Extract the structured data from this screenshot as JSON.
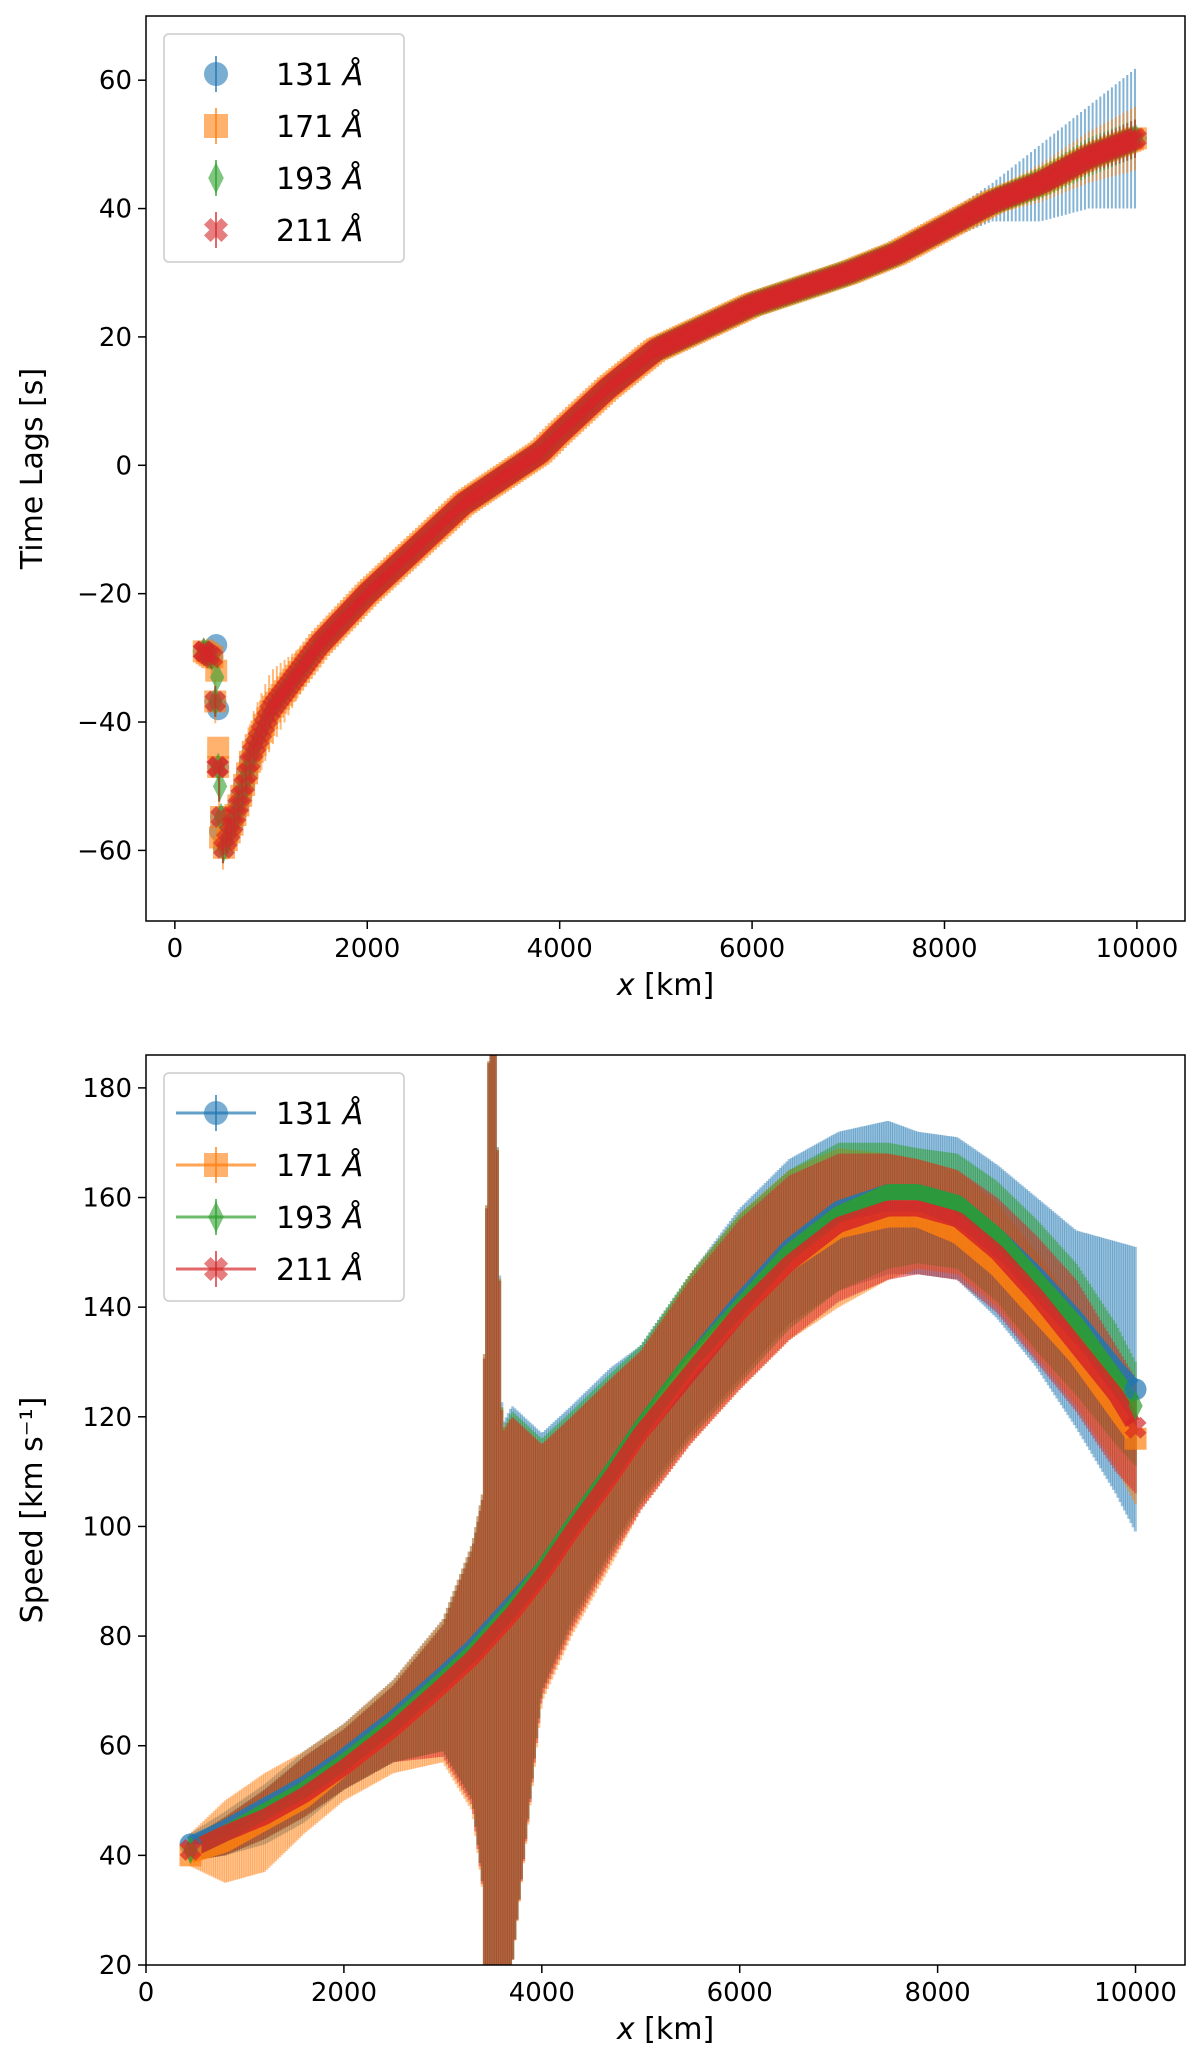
{
  "colors": {
    "c131": "#1f77b4",
    "c171": "#ff7f0e",
    "c193": "#2ca02c",
    "c211": "#d62728"
  },
  "chart_data": [
    {
      "type": "scatter",
      "title": "",
      "xlabel": "x [km]",
      "ylabel": "Time Lags [s]",
      "xlim": [
        -300,
        10500
      ],
      "ylim": [
        -71,
        70
      ],
      "xticks": [
        0,
        2000,
        4000,
        6000,
        8000,
        10000
      ],
      "yticks": [
        -60,
        -40,
        -20,
        0,
        20,
        40,
        60
      ],
      "xtick_labels": [
        "0",
        "2000",
        "4000",
        "6000",
        "8000",
        "10000"
      ],
      "ytick_labels": [
        "−60",
        "−40",
        "−20",
        "0",
        "20",
        "40",
        "60"
      ],
      "legend_position": "upper-left",
      "series": [
        {
          "name": "131 Å",
          "marker": "circle",
          "color": "#1f77b4"
        },
        {
          "name": "171 Å",
          "marker": "square",
          "color": "#ff7f0e"
        },
        {
          "name": "193 Å",
          "marker": "thin-diamond",
          "color": "#2ca02c"
        },
        {
          "name": "211 Å",
          "marker": "x",
          "color": "#d62728"
        }
      ],
      "x": [
        300,
        400,
        450,
        500,
        600,
        700,
        800,
        1000,
        1500,
        2000,
        2500,
        3000,
        3500,
        3800,
        4000,
        4500,
        5000,
        6000,
        7000,
        7500,
        8000,
        8500,
        9000,
        9500,
        10000
      ],
      "values": [
        -29,
        -30,
        -47,
        -60,
        -56,
        -51,
        -45,
        -38,
        -28,
        -20,
        -13,
        -6,
        -1,
        2,
        5,
        12,
        18,
        25,
        30,
        33,
        37,
        41,
        44,
        48,
        51
      ],
      "err_131": [
        2,
        2,
        3,
        2,
        2,
        2,
        2,
        2,
        1.5,
        1,
        1,
        1,
        1,
        1,
        1,
        1,
        1,
        1,
        1.2,
        1.5,
        2,
        3,
        6,
        8,
        11
      ],
      "err_171": [
        2,
        3,
        4,
        3,
        3,
        5,
        6,
        6,
        2,
        1,
        1,
        1,
        1,
        1,
        1,
        1,
        1,
        1,
        1,
        1,
        1.5,
        2,
        3,
        4,
        5
      ],
      "err_193": [
        1.5,
        2,
        3,
        2,
        2,
        2,
        2,
        2,
        1.5,
        1,
        1,
        1,
        1,
        1,
        1,
        1,
        1,
        1,
        1,
        1,
        1.5,
        2,
        2.5,
        3,
        3
      ],
      "err_211": [
        1.5,
        2,
        3,
        2,
        2,
        2,
        2,
        2,
        1.5,
        1,
        1,
        1,
        1,
        1,
        1,
        1,
        1,
        1,
        1,
        1,
        1.5,
        2,
        2,
        2.5,
        3
      ],
      "points_131": [
        [
          430,
          -28
        ],
        [
          450,
          -38
        ],
        [
          470,
          -57
        ]
      ],
      "points_171": [
        [
          430,
          -32
        ],
        [
          450,
          -44
        ],
        [
          470,
          -58
        ]
      ],
      "points_193": [
        [
          440,
          -33
        ],
        [
          470,
          -50
        ]
      ],
      "points_211": [
        [
          440,
          -47
        ],
        [
          300,
          -29
        ]
      ]
    },
    {
      "type": "line",
      "title": "",
      "xlabel": "x [km]",
      "ylabel": "Speed [km s⁻¹]",
      "xlim": [
        0,
        10500
      ],
      "ylim": [
        20,
        186
      ],
      "xticks": [
        0,
        2000,
        4000,
        6000,
        8000,
        10000
      ],
      "yticks": [
        20,
        40,
        60,
        80,
        100,
        120,
        140,
        160,
        180
      ],
      "xtick_labels": [
        "0",
        "2000",
        "4000",
        "6000",
        "8000",
        "10000"
      ],
      "ytick_labels": [
        "20",
        "40",
        "60",
        "80",
        "100",
        "120",
        "140",
        "160",
        "180"
      ],
      "legend_position": "upper-left",
      "x": [
        450,
        800,
        1200,
        1600,
        2000,
        2500,
        3000,
        3300,
        3500,
        3700,
        4000,
        4300,
        4700,
        5000,
        5500,
        6000,
        6500,
        7000,
        7500,
        7800,
        8200,
        8600,
        9000,
        9400,
        9800,
        10000
      ],
      "series": [
        {
          "name": "131 Å",
          "marker": "circle",
          "color": "#1f77b4",
          "values": [
            42,
            45,
            49,
            53,
            58,
            65,
            73,
            78,
            82,
            86,
            92,
            100,
            110,
            118,
            130,
            141,
            151,
            158,
            161,
            161,
            159,
            153,
            146,
            138,
            129,
            125
          ]
        },
        {
          "name": "171 Å",
          "marker": "square",
          "color": "#ff7f0e",
          "values": [
            40,
            42,
            46,
            50,
            56,
            63,
            71,
            76,
            80,
            84,
            91,
            99,
            109,
            117,
            129,
            139,
            148,
            154,
            156,
            156,
            153,
            147,
            139,
            131,
            121,
            116
          ]
        },
        {
          "name": "193 Å",
          "marker": "thin-diamond",
          "color": "#2ca02c",
          "values": [
            41,
            44,
            48,
            52,
            57,
            64,
            72,
            77,
            81,
            85,
            92,
            100,
            110,
            118,
            130,
            140,
            150,
            157,
            161,
            161,
            159,
            153,
            145,
            137,
            127,
            122
          ]
        },
        {
          "name": "211 Å",
          "marker": "x",
          "color": "#d62728",
          "values": [
            41,
            44,
            47,
            51,
            56,
            63,
            71,
            76,
            80,
            84,
            91,
            99,
            109,
            117,
            128,
            139,
            148,
            155,
            158,
            158,
            156,
            150,
            142,
            133,
            124,
            118
          ]
        }
      ],
      "band_upper_131": [
        44,
        48,
        53,
        59,
        64,
        72,
        83,
        97,
        115,
        122,
        117,
        122,
        129,
        133,
        146,
        158,
        167,
        172,
        174,
        172,
        171,
        166,
        160,
        154,
        152,
        151
      ],
      "band_lower_131": [
        39,
        40,
        42,
        46,
        52,
        57,
        59,
        50,
        20,
        20,
        70,
        83,
        96,
        105,
        117,
        127,
        137,
        143,
        146,
        146,
        145,
        138,
        129,
        118,
        106,
        99
      ],
      "band_upper_171": [
        44,
        50,
        55,
        59,
        64,
        72,
        83,
        97,
        115,
        120,
        115,
        120,
        127,
        132,
        146,
        157,
        165,
        169,
        168,
        167,
        165,
        159,
        150,
        140,
        128,
        124
      ],
      "band_lower_171": [
        38,
        35,
        37,
        44,
        50,
        55,
        57,
        48,
        20,
        20,
        68,
        80,
        93,
        103,
        115,
        125,
        134,
        140,
        145,
        147,
        146,
        140,
        131,
        122,
        111,
        104
      ],
      "band_upper_193": [
        43,
        47,
        52,
        58,
        63,
        71,
        82,
        96,
        114,
        121,
        116,
        121,
        128,
        133,
        146,
        157,
        165,
        170,
        170,
        169,
        168,
        163,
        156,
        148,
        137,
        130
      ],
      "band_lower_193": [
        39,
        40,
        43,
        47,
        52,
        57,
        59,
        50,
        20,
        20,
        70,
        82,
        95,
        104,
        116,
        126,
        136,
        143,
        147,
        148,
        147,
        141,
        132,
        124,
        115,
        111
      ],
      "band_upper_211": [
        43,
        47,
        52,
        58,
        63,
        71,
        82,
        96,
        114,
        120,
        115,
        120,
        127,
        132,
        145,
        156,
        164,
        168,
        168,
        167,
        165,
        160,
        153,
        145,
        133,
        127
      ],
      "band_lower_211": [
        39,
        40,
        43,
        47,
        52,
        57,
        58,
        49,
        20,
        20,
        69,
        81,
        94,
        103,
        115,
        125,
        134,
        141,
        145,
        146,
        145,
        139,
        130,
        121,
        110,
        106
      ],
      "spike": {
        "x": [
          3400,
          3500,
          3600
        ],
        "peak": 186,
        "floor": 20
      }
    }
  ]
}
